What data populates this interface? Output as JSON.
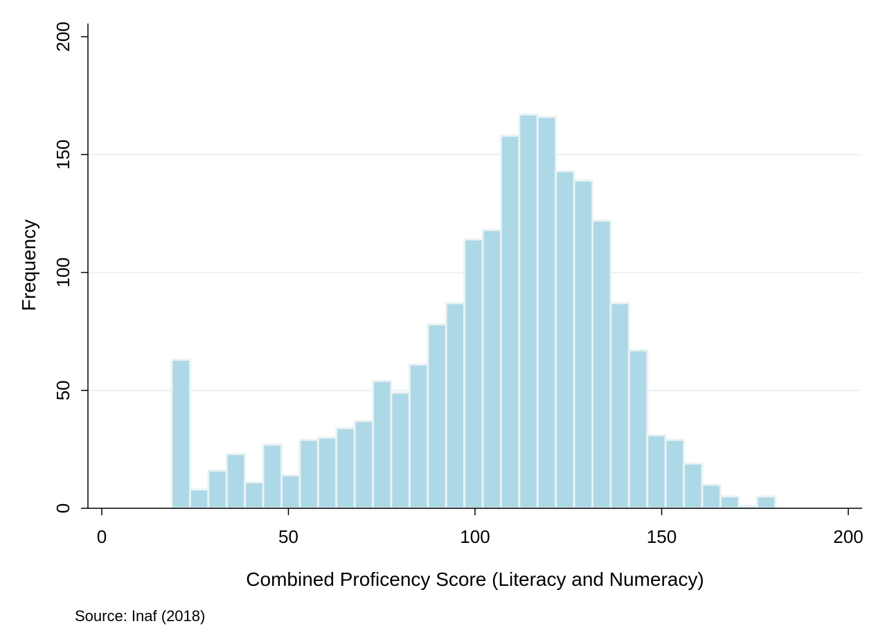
{
  "chart_data": {
    "type": "bar",
    "xlabel": "Combined Proficency Score (Literacy and Numeracy)",
    "ylabel": "Frequency",
    "note": "Source: Inaf (2018)",
    "xlim": [
      0,
      200
    ],
    "ylim": [
      0,
      200
    ],
    "xticks": [
      "0",
      "50",
      "100",
      "150",
      "200"
    ],
    "yticks": [
      "0",
      "50",
      "100",
      "150",
      "200"
    ],
    "grid": true,
    "bin_width": 4.9,
    "bins": [
      {
        "x": 18.75,
        "y": 63
      },
      {
        "x": 23.65,
        "y": 8
      },
      {
        "x": 28.55,
        "y": 16
      },
      {
        "x": 33.45,
        "y": 23
      },
      {
        "x": 38.35,
        "y": 11
      },
      {
        "x": 43.25,
        "y": 27
      },
      {
        "x": 48.15,
        "y": 14
      },
      {
        "x": 53.05,
        "y": 29
      },
      {
        "x": 57.95,
        "y": 30
      },
      {
        "x": 62.85,
        "y": 34
      },
      {
        "x": 67.75,
        "y": 37
      },
      {
        "x": 72.65,
        "y": 54
      },
      {
        "x": 77.55,
        "y": 49
      },
      {
        "x": 82.45,
        "y": 61
      },
      {
        "x": 87.35,
        "y": 78
      },
      {
        "x": 92.25,
        "y": 87
      },
      {
        "x": 97.15,
        "y": 114
      },
      {
        "x": 102.05,
        "y": 118
      },
      {
        "x": 106.95,
        "y": 158
      },
      {
        "x": 111.85,
        "y": 167
      },
      {
        "x": 116.75,
        "y": 166
      },
      {
        "x": 121.65,
        "y": 143
      },
      {
        "x": 126.55,
        "y": 139
      },
      {
        "x": 131.45,
        "y": 122
      },
      {
        "x": 136.35,
        "y": 87
      },
      {
        "x": 141.25,
        "y": 67
      },
      {
        "x": 146.15,
        "y": 31
      },
      {
        "x": 151.05,
        "y": 29
      },
      {
        "x": 155.95,
        "y": 19
      },
      {
        "x": 160.85,
        "y": 10
      },
      {
        "x": 165.75,
        "y": 5
      },
      {
        "x": 170.65,
        "y": 1
      },
      {
        "x": 175.55,
        "y": 5
      }
    ],
    "colors": {
      "bar_fill": "#add8e6",
      "bar_stroke": "#eaf2f3",
      "grid": "#eaf2f3",
      "axis": "#000000"
    }
  }
}
